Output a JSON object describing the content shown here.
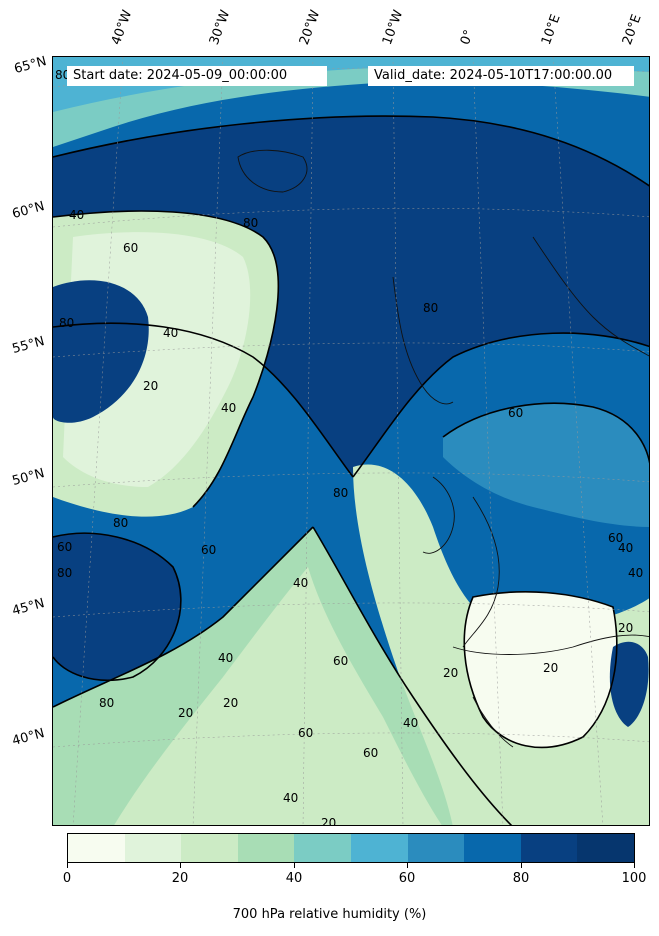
{
  "header": {
    "start_date": "Start date: 2024-05-09_00:00:00",
    "valid_date": "Valid_date: 2024-05-10T17:00:00.00"
  },
  "map": {
    "longitude_labels": [
      "40°W",
      "30°W",
      "20°W",
      "10°W",
      "0°",
      "10°E",
      "20°E"
    ],
    "latitude_labels": [
      "65°N",
      "60°N",
      "55°N",
      "50°N",
      "45°N",
      "40°N"
    ],
    "contour_labels": [
      "80",
      "40",
      "80",
      "40",
      "60",
      "80",
      "40",
      "20",
      "80",
      "60",
      "80",
      "60",
      "40",
      "20",
      "80",
      "60",
      "40",
      "20",
      "60",
      "40",
      "20",
      "80",
      "40",
      "20",
      "60",
      "60",
      "40",
      "20",
      "80",
      "60",
      "40",
      "20"
    ]
  },
  "colorbar": {
    "title": "700 hPa relative humidity (%)",
    "tick_labels": [
      "0",
      "20",
      "40",
      "60",
      "80",
      "100"
    ],
    "colors": [
      "#f7fcf0",
      "#e0f3db",
      "#ccebc5",
      "#a8ddb5",
      "#7bccc4",
      "#4eb3d3",
      "#2b8cbe",
      "#0868ac",
      "#084081",
      "#06366e"
    ]
  }
}
